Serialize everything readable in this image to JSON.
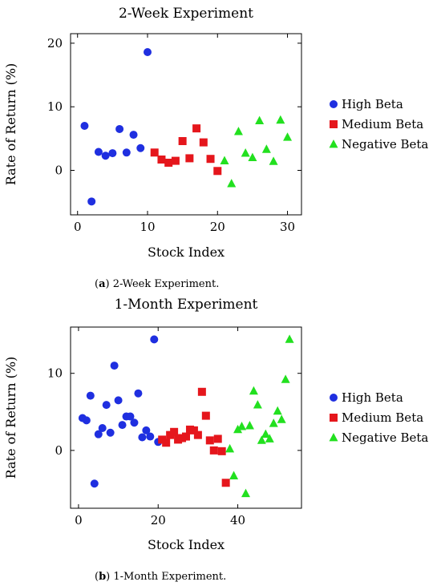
{
  "chart_data": [
    {
      "type": "scatter",
      "title": "2-Week Experiment",
      "xlabel": "Stock Index",
      "ylabel": "Rate of Return (%)",
      "xlim": [
        -1,
        32
      ],
      "ylim": [
        -7,
        21.5
      ],
      "xticks": [
        0,
        10,
        20,
        30
      ],
      "yticks": [
        0,
        10,
        20
      ],
      "legend_position": "right",
      "caption_label": "a",
      "caption_text": " 2-Week Experiment.",
      "series": [
        {
          "name": "High Beta",
          "marker": "circle",
          "color": "#1f2fe0",
          "x": [
            1,
            2,
            3,
            4,
            5,
            6,
            7,
            8,
            9,
            10
          ],
          "y": [
            7.0,
            -4.9,
            2.9,
            2.3,
            2.7,
            6.5,
            2.8,
            5.6,
            3.5,
            18.6
          ]
        },
        {
          "name": "Medium Beta",
          "marker": "square",
          "color": "#e5161c",
          "x": [
            11,
            12,
            13,
            14,
            15,
            16,
            17,
            18,
            19,
            20
          ],
          "y": [
            2.8,
            1.7,
            1.2,
            1.5,
            4.6,
            1.9,
            6.6,
            4.4,
            1.8,
            -0.1
          ]
        },
        {
          "name": "Negative Beta",
          "marker": "triangle",
          "color": "#22e01f",
          "x": [
            21,
            22,
            23,
            24,
            25,
            26,
            27,
            28,
            29,
            30
          ],
          "y": [
            1.5,
            -2.1,
            6.1,
            2.7,
            2.0,
            7.8,
            3.3,
            1.4,
            7.9,
            5.2
          ]
        }
      ]
    },
    {
      "type": "scatter",
      "title": "1-Month Experiment",
      "xlabel": "Stock Index",
      "ylabel": "Rate of Return (%)",
      "xlim": [
        -2,
        56
      ],
      "ylim": [
        -7.5,
        16
      ],
      "xticks": [
        0,
        20,
        40
      ],
      "yticks": [
        0,
        10
      ],
      "legend_position": "right",
      "caption_label": "b",
      "caption_text": " 1-Month Experiment.",
      "series": [
        {
          "name": "High Beta",
          "marker": "circle",
          "color": "#1f2fe0",
          "x": [
            1,
            2,
            3,
            4,
            5,
            6,
            7,
            8,
            9,
            10,
            11,
            12,
            13,
            14,
            15,
            16,
            17,
            18,
            19,
            20
          ],
          "y": [
            4.2,
            3.9,
            7.1,
            -4.3,
            2.1,
            2.9,
            5.9,
            2.3,
            11.0,
            6.5,
            3.3,
            4.4,
            4.4,
            3.6,
            7.4,
            1.7,
            2.6,
            1.8,
            14.4,
            1.1
          ]
        },
        {
          "name": "Medium Beta",
          "marker": "square",
          "color": "#e5161c",
          "x": [
            21,
            22,
            23,
            24,
            25,
            26,
            27,
            28,
            29,
            30,
            31,
            32,
            33,
            34,
            35,
            36,
            37
          ],
          "y": [
            1.4,
            1.0,
            2.0,
            2.4,
            1.4,
            1.6,
            1.8,
            2.7,
            2.6,
            2.0,
            7.6,
            4.5,
            1.3,
            0.0,
            1.5,
            -0.1,
            -4.2
          ]
        },
        {
          "name": "Negative Beta",
          "marker": "triangle",
          "color": "#22e01f",
          "x": [
            38,
            39,
            40,
            41,
            42,
            43,
            44,
            45,
            46,
            47,
            48,
            49,
            50,
            51,
            52,
            53
          ],
          "y": [
            0.2,
            -3.3,
            2.7,
            3.1,
            -5.6,
            3.2,
            7.7,
            5.9,
            1.3,
            2.1,
            1.5,
            3.5,
            5.1,
            4.0,
            9.2,
            14.4
          ]
        }
      ]
    }
  ]
}
